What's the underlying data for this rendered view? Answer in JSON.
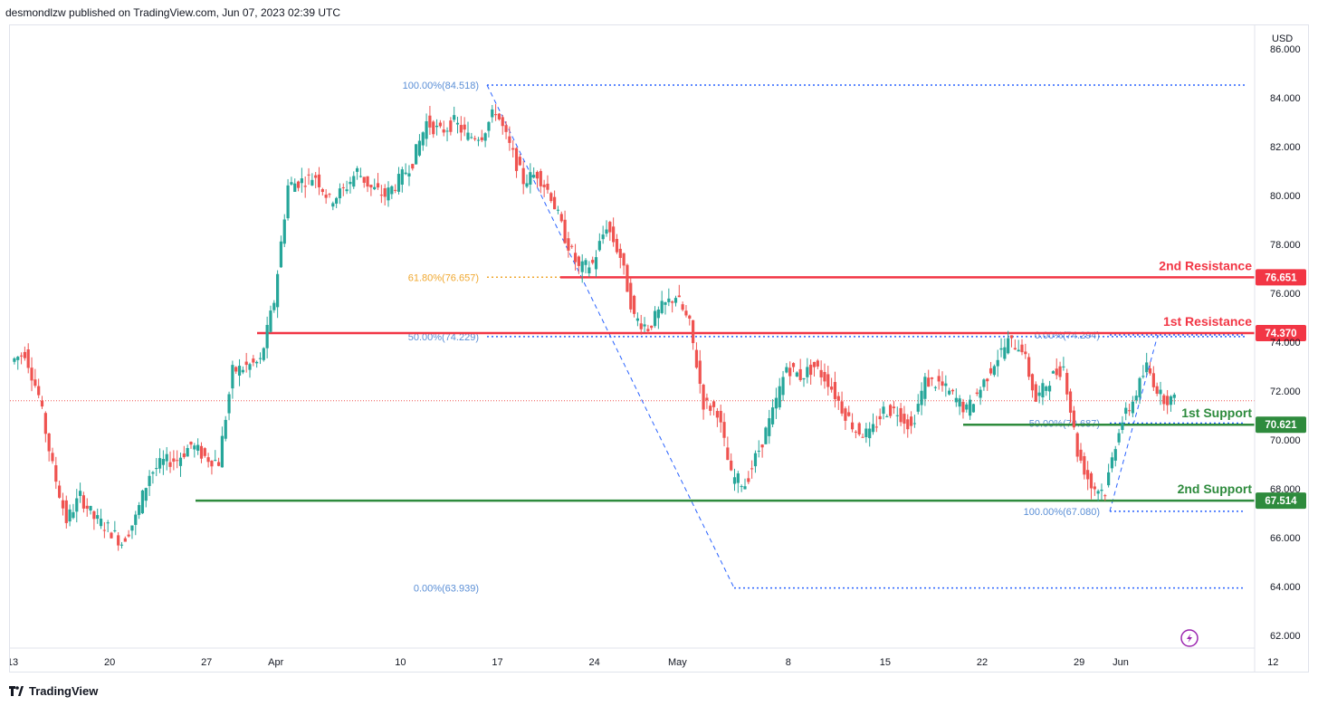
{
  "header": {
    "text": "desmondlzw published on TradingView.com, Jun 07, 2023 02:39 UTC"
  },
  "footer": {
    "brand": "TradingView"
  },
  "colors": {
    "up": "#26a69a",
    "down": "#ef5350",
    "resistance": "#f23645",
    "support": "#2e8b3d",
    "fib": "#2962ff",
    "fib_label": "#5b8fd6",
    "fib_orange": "#f0a830",
    "last_price": "#ef5350"
  },
  "chart_data": {
    "type": "candlestick",
    "currency": "USD",
    "y_range": [
      61.5,
      86.6
    ],
    "y_ticks": [
      "62.000",
      "64.000",
      "66.000",
      "68.000",
      "70.000",
      "72.000",
      "74.000",
      "76.000",
      "78.000",
      "80.000",
      "82.000",
      "84.000",
      "86.000"
    ],
    "x_ticks": [
      "13",
      "20",
      "27",
      "Apr",
      "10",
      "17",
      "24",
      "May",
      "8",
      "15",
      "22",
      "29",
      "Jun",
      "12"
    ],
    "x_tick_days": [
      0,
      7,
      14,
      19,
      28,
      35,
      42,
      48,
      56,
      63,
      70,
      77,
      80,
      91
    ],
    "levels": [
      {
        "label": "2nd Resistance",
        "price_label": "76.651",
        "value": 76.651,
        "kind": "resistance"
      },
      {
        "label": "1st Resistance",
        "price_label": "74.370",
        "value": 74.37,
        "kind": "resistance"
      },
      {
        "label": "1st Support",
        "price_label": "70.621",
        "value": 70.621,
        "kind": "support"
      },
      {
        "label": "2nd Support",
        "price_label": "67.514",
        "value": 67.514,
        "kind": "support"
      }
    ],
    "fib_labels": [
      {
        "text": "100.00%(84.518)",
        "value": 84.518,
        "color": "blue"
      },
      {
        "text": "61.80%(76.657)",
        "value": 76.657,
        "color": "orange"
      },
      {
        "text": "50.00%(74.229)",
        "value": 74.229,
        "color": "blue"
      },
      {
        "text": "0.00%(63.939)",
        "value": 63.939,
        "color": "blue"
      },
      {
        "text": "0.00%(74.294)",
        "value": 74.294,
        "color": "blue"
      },
      {
        "text": "50.00%(70.687)",
        "value": 70.687,
        "color": "blue"
      },
      {
        "text": "100.00%(67.080)",
        "value": 67.08,
        "color": "blue"
      }
    ],
    "last_price": 71.6,
    "closes": [
      {
        "day": 0,
        "c": 73.2
      },
      {
        "day": 1,
        "c": 73.6
      },
      {
        "day": 2,
        "c": 71.8
      },
      {
        "day": 3,
        "c": 68.9
      },
      {
        "day": 4,
        "c": 66.7
      },
      {
        "day": 5,
        "c": 67.7
      },
      {
        "day": 6,
        "c": 66.8
      },
      {
        "day": 7,
        "c": 66.4
      },
      {
        "day": 8,
        "c": 65.8
      },
      {
        "day": 9,
        "c": 66.8
      },
      {
        "day": 10,
        "c": 68.6
      },
      {
        "day": 11,
        "c": 69.1
      },
      {
        "day": 12,
        "c": 69.2
      },
      {
        "day": 13,
        "c": 69.8
      },
      {
        "day": 14,
        "c": 69.3
      },
      {
        "day": 15,
        "c": 69.1
      },
      {
        "day": 16,
        "c": 72.8
      },
      {
        "day": 17,
        "c": 73.0
      },
      {
        "day": 18,
        "c": 73.2
      },
      {
        "day": 19,
        "c": 75.7
      },
      {
        "day": 20,
        "c": 80.4
      },
      {
        "day": 21,
        "c": 80.6
      },
      {
        "day": 22,
        "c": 80.8
      },
      {
        "day": 23,
        "c": 79.8
      },
      {
        "day": 24,
        "c": 80.2
      },
      {
        "day": 25,
        "c": 81.0
      },
      {
        "day": 26,
        "c": 80.3
      },
      {
        "day": 27,
        "c": 80.0
      },
      {
        "day": 28,
        "c": 80.6
      },
      {
        "day": 29,
        "c": 81.4
      },
      {
        "day": 30,
        "c": 83.0
      },
      {
        "day": 31,
        "c": 82.6
      },
      {
        "day": 32,
        "c": 83.0
      },
      {
        "day": 33,
        "c": 82.4
      },
      {
        "day": 34,
        "c": 82.5
      },
      {
        "day": 35,
        "c": 83.5
      },
      {
        "day": 36,
        "c": 82.0
      },
      {
        "day": 37,
        "c": 80.6
      },
      {
        "day": 38,
        "c": 80.9
      },
      {
        "day": 39,
        "c": 80.0
      },
      {
        "day": 40,
        "c": 78.3
      },
      {
        "day": 41,
        "c": 77.0
      },
      {
        "day": 42,
        "c": 77.2
      },
      {
        "day": 43,
        "c": 78.8
      },
      {
        "day": 44,
        "c": 77.5
      },
      {
        "day": 45,
        "c": 75.0
      },
      {
        "day": 46,
        "c": 74.6
      },
      {
        "day": 47,
        "c": 75.4
      },
      {
        "day": 48,
        "c": 75.9
      },
      {
        "day": 49,
        "c": 74.7
      },
      {
        "day": 50,
        "c": 71.5
      },
      {
        "day": 51,
        "c": 71.2
      },
      {
        "day": 52,
        "c": 68.5
      },
      {
        "day": 53,
        "c": 68.2
      },
      {
        "day": 54,
        "c": 69.6
      },
      {
        "day": 55,
        "c": 71.1
      },
      {
        "day": 56,
        "c": 73.0
      },
      {
        "day": 57,
        "c": 72.6
      },
      {
        "day": 58,
        "c": 73.0
      },
      {
        "day": 59,
        "c": 72.4
      },
      {
        "day": 60,
        "c": 71.3
      },
      {
        "day": 61,
        "c": 70.4
      },
      {
        "day": 62,
        "c": 70.2
      },
      {
        "day": 63,
        "c": 71.2
      },
      {
        "day": 64,
        "c": 71.2
      },
      {
        "day": 65,
        "c": 70.5
      },
      {
        "day": 66,
        "c": 72.4
      },
      {
        "day": 67,
        "c": 72.3
      },
      {
        "day": 68,
        "c": 71.8
      },
      {
        "day": 69,
        "c": 71.2
      },
      {
        "day": 70,
        "c": 72.1
      },
      {
        "day": 71,
        "c": 73.2
      },
      {
        "day": 72,
        "c": 74.0
      },
      {
        "day": 73,
        "c": 73.8
      },
      {
        "day": 74,
        "c": 71.6
      },
      {
        "day": 75,
        "c": 72.5
      },
      {
        "day": 76,
        "c": 73.0
      },
      {
        "day": 77,
        "c": 69.5
      },
      {
        "day": 78,
        "c": 68.1
      },
      {
        "day": 79,
        "c": 67.9
      },
      {
        "day": 80,
        "c": 70.5
      },
      {
        "day": 81,
        "c": 71.6
      },
      {
        "day": 82,
        "c": 73.0
      },
      {
        "day": 83,
        "c": 71.8
      },
      {
        "day": 84,
        "c": 71.6
      }
    ]
  }
}
